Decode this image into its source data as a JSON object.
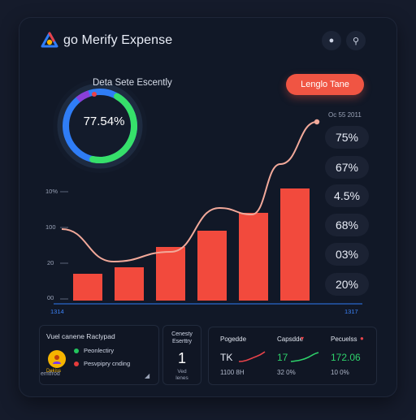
{
  "app": {
    "title": "go Merify Expense"
  },
  "header": {
    "buttons": [
      {
        "icon": "toggle-icon",
        "glyph": "●"
      },
      {
        "icon": "search-icon",
        "glyph": "⚲"
      }
    ]
  },
  "gauge": {
    "title": "Deta Sete Escently",
    "value_label": "77.54%",
    "value": 77.54,
    "colors": {
      "ring": "#1e2b40",
      "blue": "#2f7df6",
      "green": "#36e06a",
      "purple": "#8a3fd9",
      "red": "#e8424a"
    }
  },
  "cta": {
    "label": "Lenglo Tane"
  },
  "side": {
    "date": "Oc 55 2011",
    "pills": [
      "75%",
      "67%",
      "4.5%",
      "68%",
      "03%",
      "20%"
    ]
  },
  "chart_data": {
    "type": "bar",
    "categories": [
      "",
      "",
      "",
      "",
      "",
      ""
    ],
    "values": [
      33,
      41,
      66,
      86,
      108,
      138
    ],
    "line": [
      48,
      60,
      82,
      114,
      168,
      220
    ],
    "y_tick_labels": [
      "10%",
      "100",
      "20",
      "00"
    ],
    "x_tick_labels": [
      "1314",
      "1317"
    ],
    "bar_color": "#f24a3d",
    "line_color": "#f2a99a"
  },
  "bottom_left": {
    "title": "Vuel canene Raclypad",
    "avatar_text": "Dekiss",
    "items": [
      {
        "label": "Peonlectiry",
        "color": "#23c55e"
      },
      {
        "label": "Pesvpipry cnding",
        "color": "#e63b3b"
      }
    ],
    "sub": "emtfrod",
    "corner_icon": "◢"
  },
  "mid_card": {
    "line1": "Cenesty",
    "line2": "Eserttry",
    "number": "1",
    "line3": "Ved\nlenes"
  },
  "metrics": [
    {
      "label": "Pogedde",
      "value": "TK",
      "value_color": "#e9edf7",
      "sub": "1100 8H",
      "spark_color": "#e8434a"
    },
    {
      "label": "Capsdde",
      "value": "17",
      "value_color": "#2ed06a",
      "sub": "32 0%",
      "spark_color": "#2ed06a"
    },
    {
      "label": "Pecuelss",
      "value": "172.06",
      "value_color": "#2ed06a",
      "sub": "10 0%"
    }
  ]
}
